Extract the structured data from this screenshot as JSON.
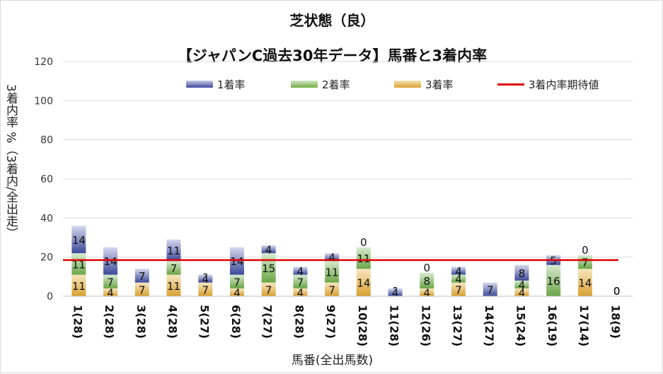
{
  "chart_data": {
    "type": "bar",
    "title": "芝状態（良）",
    "subtitle": "【ジャパンC過去30年データ】馬番と3着内率",
    "xlabel": "馬番(全出馬数)",
    "ylabel": "3着内率 %（3着内/全出走）",
    "ylim": [
      0,
      120
    ],
    "yticks": [
      "0",
      "20",
      "40",
      "60",
      "80",
      "100",
      "120"
    ],
    "stacked": true,
    "legend_position": "top",
    "categories": [
      "1(28)",
      "2(28)",
      "3(28)",
      "4(28)",
      "5(27)",
      "6(28)",
      "7(27)",
      "8(28)",
      "9(27)",
      "10(28)",
      "11(28)",
      "12(26)",
      "13(27)",
      "14(27)",
      "15(24)",
      "16(19)",
      "17(14)",
      "18(9)"
    ],
    "series": [
      {
        "name": "3着率",
        "color": "#e8b24a",
        "values": [
          11,
          4,
          7,
          11,
          7,
          4,
          7,
          4,
          7,
          14,
          0,
          4,
          7,
          0,
          4,
          0,
          14,
          0
        ]
      },
      {
        "name": "2着率",
        "color": "#70ad47",
        "values": [
          11,
          7,
          0,
          7,
          0,
          7,
          15,
          7,
          11,
          11,
          0,
          8,
          4,
          0,
          4,
          16,
          7,
          0
        ]
      },
      {
        "name": "1着率",
        "color": "#3c4a9a",
        "values": [
          14,
          14,
          7,
          11,
          4,
          14,
          4,
          4,
          4,
          0,
          4,
          0,
          4,
          7,
          8,
          5,
          0,
          0
        ]
      }
    ],
    "reference_line": {
      "name": "3着内率期待値",
      "value": 18.5,
      "color": "#e00000"
    },
    "grid": true
  }
}
